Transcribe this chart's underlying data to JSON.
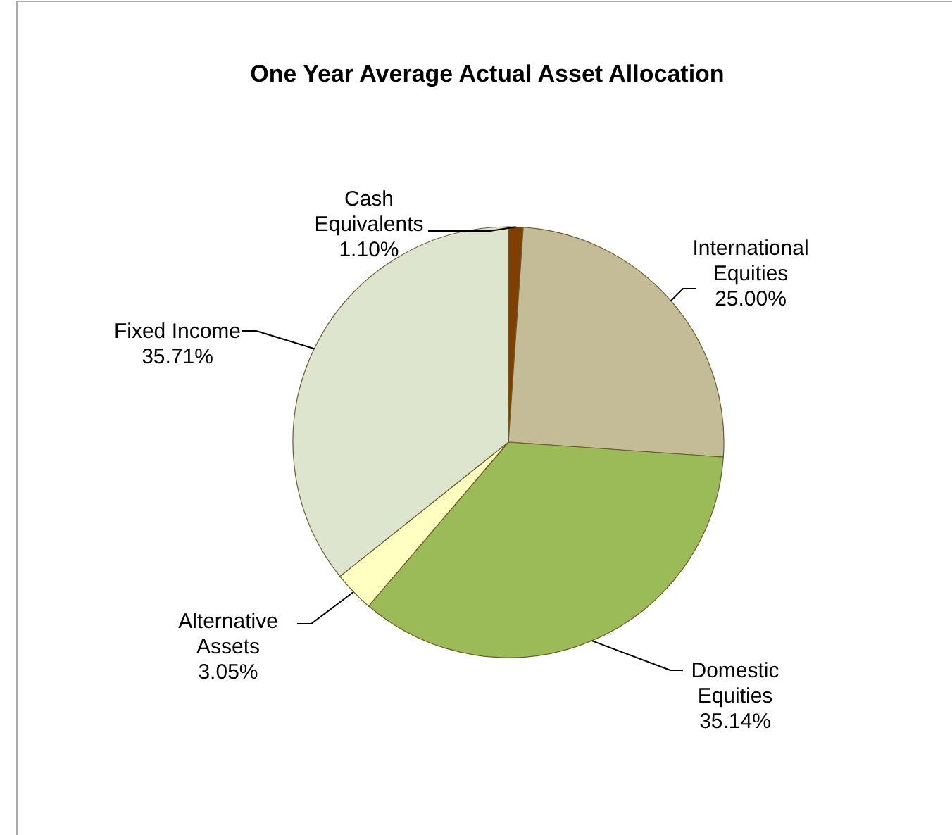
{
  "chart_data": {
    "type": "pie",
    "title": "One Year Average Actual Asset Allocation",
    "categories": [
      "Cash Equivalents",
      "International Equities",
      "Domestic Equities",
      "Alternative Assets",
      "Fixed Income"
    ],
    "values": [
      1.1,
      25.0,
      35.14,
      3.05,
      35.71
    ],
    "value_labels": [
      "1.10%",
      "25.00%",
      "35.14%",
      "3.05%",
      "35.71%"
    ],
    "colors": [
      "#7f3f00",
      "#c4bc96",
      "#9bbb59",
      "#ffffc0",
      "#dde5cf"
    ]
  }
}
